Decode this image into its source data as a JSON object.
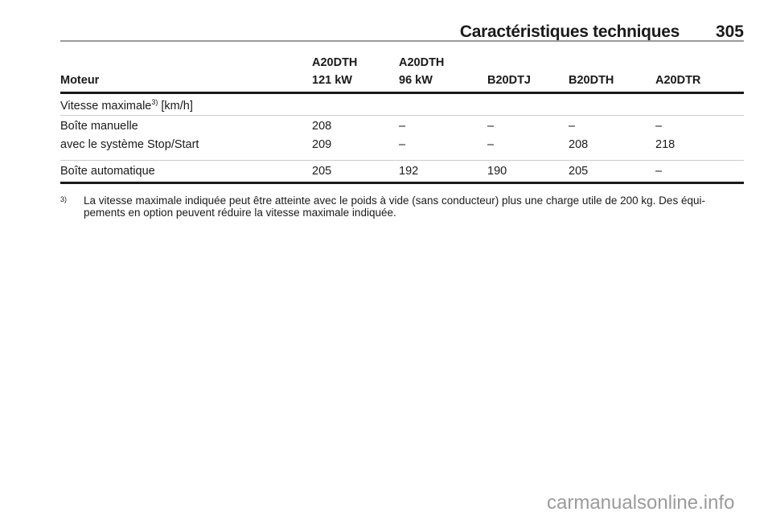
{
  "header": {
    "title": "Caractéristiques techniques",
    "page_number": "305"
  },
  "table": {
    "row_header": "Moteur",
    "columns": [
      [
        "A20DTH",
        "121 kW"
      ],
      [
        "A20DTH",
        "96 kW"
      ],
      [
        "",
        "B20DTJ"
      ],
      [
        "",
        "B20DTH"
      ],
      [
        "",
        "A20DTR"
      ]
    ],
    "section": {
      "label": "Vitesse maximale",
      "sup": "3)",
      "unit": " [km/h]"
    },
    "rows": [
      {
        "label": "Boîte manuelle",
        "values": [
          "208",
          "–",
          "–",
          "–",
          "–"
        ]
      },
      {
        "label": "avec le système Stop/Start",
        "values": [
          "209",
          "–",
          "–",
          "208",
          "218"
        ]
      },
      {
        "label": "Boîte automatique",
        "values": [
          "205",
          "192",
          "190",
          "205",
          "–"
        ]
      }
    ]
  },
  "footnote": {
    "mark": "3)",
    "line1": "La vitesse maximale indiquée peut être atteinte avec le poids à vide (sans conducteur) plus une charge utile de 200 kg. Des équi-",
    "line2": "pements en option peuvent réduire la vitesse maximale indiquée."
  },
  "watermark": "carmanualsonline.info"
}
